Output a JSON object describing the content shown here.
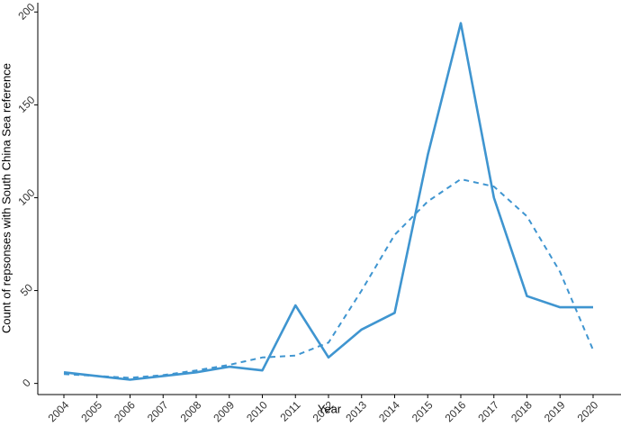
{
  "chart_data": {
    "type": "line",
    "x_label": "Year",
    "y_label": "Count of repsonses with South China Sea reference",
    "categories": [
      "2004",
      "2005",
      "2006",
      "2007",
      "2008",
      "2009",
      "2010",
      "2011",
      "2012",
      "2013",
      "2014",
      "2015",
      "2016",
      "2017",
      "2018",
      "2019",
      "2020"
    ],
    "series": [
      {
        "color": "#3f95d0",
        "dashed": false,
        "values": [
          6,
          4,
          2,
          4,
          6,
          9,
          7,
          42,
          14,
          29,
          38,
          123,
          194,
          100,
          47,
          41,
          41
        ]
      },
      {
        "color": "#3f95d0",
        "dashed": true,
        "values": [
          5,
          4,
          3,
          4.5,
          7,
          10,
          14,
          15,
          22,
          50,
          80,
          98,
          110,
          106,
          90,
          60,
          18
        ]
      }
    ],
    "ylim": [
      -6,
      205
    ],
    "yticks": [
      0,
      50,
      100,
      150,
      200
    ],
    "grid": false
  }
}
